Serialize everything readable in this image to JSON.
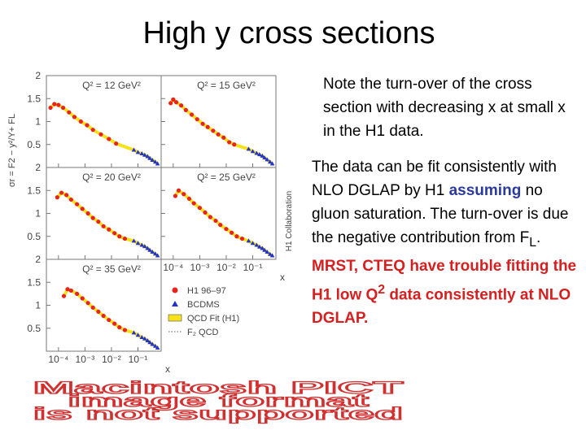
{
  "slide": {
    "title": "High y cross sections",
    "note": "Note the turn-over of the cross section with decreasing x at small x in the H1 data.",
    "body": [
      "The data can be fit consistently with NLO DGLAP by H1 ",
      "assuming",
      " no gluon saturation.  The turn-over is due the negative contribution from F",
      "L",
      ". ",
      "MRST, CTEQ have trouble fitting the H1 low Q",
      "2",
      " data consistently at NLO DGLAP."
    ],
    "placeholder": [
      "Macintosh PICT",
      "image format",
      "is not supported"
    ]
  },
  "figure": {
    "y_label": "σr = F2 − y²/Y+ FL",
    "x_label": "x",
    "collaboration": "H1 Collaboration",
    "log_x": true,
    "xlim": [
      3.5e-05,
      0.75
    ],
    "ylim": [
      0,
      2
    ],
    "yticks": [
      0.5,
      1,
      1.5,
      2
    ],
    "xticks": [
      {
        "value": 0.0001,
        "label": "10⁻⁴"
      },
      {
        "value": 0.001,
        "label": "10⁻³"
      },
      {
        "value": 0.01,
        "label": "10⁻²"
      },
      {
        "value": 0.1,
        "label": "10⁻¹"
      }
    ],
    "h1_color": "#e8231c",
    "bcdms_color": "#2233cc",
    "fit_color": "#f5e21b",
    "legend": [
      "H1 96–97",
      "BCDMS",
      "QCD Fit (H1)",
      "F₂ QCD"
    ],
    "panels": [
      {
        "label": "Q² = 12 GeV²",
        "h1": {
          "x": [
            5e-05,
            7e-05,
            0.0001,
            0.00015,
            0.00025,
            0.0004,
            0.0007,
            0.0012,
            0.002,
            0.004,
            0.008,
            0.015
          ],
          "y": [
            1.3,
            1.38,
            1.36,
            1.3,
            1.2,
            1.1,
            1.0,
            0.92,
            0.82,
            0.72,
            0.62,
            0.52
          ]
        },
        "bcdms": {
          "x": [
            0.07,
            0.1,
            0.14,
            0.18,
            0.23,
            0.28,
            0.35,
            0.45,
            0.55
          ],
          "y": [
            0.38,
            0.33,
            0.3,
            0.27,
            0.24,
            0.2,
            0.16,
            0.12,
            0.08
          ]
        }
      },
      {
        "label": "Q² = 15 GeV²",
        "h1": {
          "x": [
            8e-05,
            0.0001,
            0.00013,
            0.0002,
            0.0003,
            0.0005,
            0.0008,
            0.0013,
            0.002,
            0.0032,
            0.005,
            0.008,
            0.013,
            0.02
          ],
          "y": [
            1.4,
            1.48,
            1.42,
            1.35,
            1.25,
            1.15,
            1.05,
            0.95,
            0.88,
            0.8,
            0.72,
            0.65,
            0.55,
            0.5
          ]
        },
        "bcdms": {
          "x": [
            0.07,
            0.1,
            0.14,
            0.18,
            0.23,
            0.28,
            0.35,
            0.45,
            0.55
          ],
          "y": [
            0.4,
            0.35,
            0.31,
            0.28,
            0.25,
            0.21,
            0.17,
            0.12,
            0.08
          ]
        }
      },
      {
        "label": "Q² = 20 GeV²",
        "h1": {
          "x": [
            9e-05,
            0.00013,
            0.0002,
            0.0003,
            0.0005,
            0.0008,
            0.0013,
            0.002,
            0.0032,
            0.005,
            0.008,
            0.013,
            0.02,
            0.032
          ],
          "y": [
            1.35,
            1.45,
            1.4,
            1.3,
            1.2,
            1.1,
            1.0,
            0.9,
            0.82,
            0.72,
            0.65,
            0.57,
            0.5,
            0.45
          ]
        },
        "bcdms": {
          "x": [
            0.07,
            0.1,
            0.14,
            0.18,
            0.23,
            0.28,
            0.35,
            0.45,
            0.55
          ],
          "y": [
            0.4,
            0.35,
            0.31,
            0.28,
            0.24,
            0.2,
            0.16,
            0.12,
            0.08
          ]
        }
      },
      {
        "label": "Q² = 25 GeV²",
        "h1": {
          "x": [
            0.00012,
            0.00016,
            0.00025,
            0.0004,
            0.0006,
            0.001,
            0.0016,
            0.0025,
            0.004,
            0.006,
            0.01,
            0.016,
            0.025,
            0.04
          ],
          "y": [
            1.38,
            1.5,
            1.42,
            1.32,
            1.22,
            1.12,
            1.02,
            0.92,
            0.84,
            0.75,
            0.66,
            0.58,
            0.5,
            0.45
          ]
        },
        "bcdms": {
          "x": [
            0.07,
            0.1,
            0.14,
            0.18,
            0.23,
            0.28,
            0.35,
            0.45,
            0.55
          ],
          "y": [
            0.4,
            0.35,
            0.31,
            0.27,
            0.24,
            0.2,
            0.16,
            0.11,
            0.08
          ]
        }
      },
      {
        "label": "Q² = 35 GeV²",
        "h1": {
          "x": [
            0.00016,
            0.00022,
            0.0003,
            0.0005,
            0.0008,
            0.0013,
            0.002,
            0.0032,
            0.005,
            0.008,
            0.013,
            0.02,
            0.032
          ],
          "y": [
            1.2,
            1.35,
            1.32,
            1.25,
            1.15,
            1.05,
            0.95,
            0.86,
            0.77,
            0.68,
            0.6,
            0.52,
            0.46
          ]
        },
        "bcdms": {
          "x": [
            0.07,
            0.1,
            0.14,
            0.18,
            0.23,
            0.28,
            0.35,
            0.45,
            0.55
          ],
          "y": [
            0.4,
            0.35,
            0.3,
            0.27,
            0.23,
            0.19,
            0.15,
            0.11,
            0.07
          ]
        }
      }
    ]
  }
}
